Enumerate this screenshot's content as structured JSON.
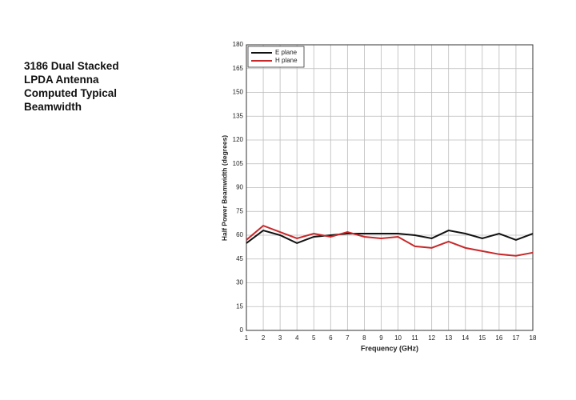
{
  "heading": [
    "3186 Dual Stacked",
    "LPDA Antenna",
    "Computed Typical",
    "Beamwidth"
  ],
  "chart_data": {
    "type": "line",
    "x_label": "Frequency (GHz)",
    "y_label": "Half Power Beamwidth (degrees)",
    "x": [
      1,
      2,
      3,
      4,
      5,
      6,
      7,
      8,
      9,
      10,
      11,
      12,
      13,
      14,
      15,
      16,
      17,
      18
    ],
    "series": [
      {
        "name": "E plane",
        "color": "#111111",
        "values": [
          55,
          63,
          60,
          55,
          59,
          60,
          61,
          61,
          61,
          61,
          60,
          58,
          63,
          61,
          58,
          61,
          57,
          61
        ]
      },
      {
        "name": "H plane",
        "color": "#c8282a",
        "values": [
          57,
          66,
          62,
          58,
          61,
          59,
          62,
          59,
          58,
          59,
          53,
          52,
          56,
          52,
          50,
          48,
          47,
          49
        ]
      }
    ],
    "xlim": [
      1,
      18
    ],
    "xticks": [
      1,
      2,
      3,
      4,
      5,
      6,
      7,
      8,
      9,
      10,
      11,
      12,
      13,
      14,
      15,
      16,
      17,
      18
    ],
    "ylim": [
      0,
      180
    ],
    "yticks": [
      0,
      15,
      30,
      45,
      60,
      75,
      90,
      105,
      120,
      135,
      150,
      165,
      180
    ],
    "grid": true,
    "legend": "upper left"
  }
}
